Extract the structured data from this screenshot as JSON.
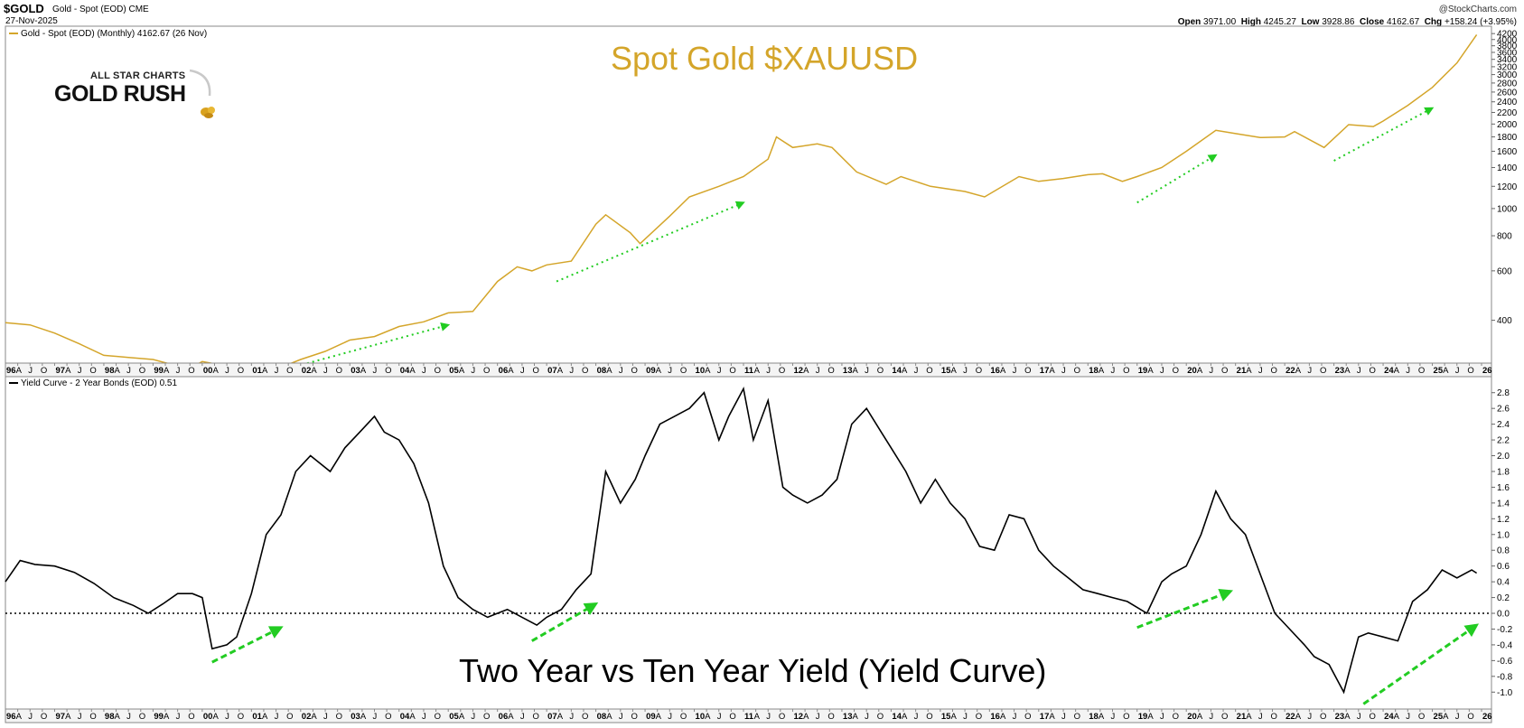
{
  "header": {
    "symbol": "$GOLD",
    "description": "Gold - Spot (EOD) CME",
    "date": "27-Nov-2025",
    "credit": "@StockCharts.com",
    "ohlc": {
      "open_label": "Open",
      "open": "3971.00",
      "high_label": "High",
      "high": "4245.27",
      "low_label": "Low",
      "low": "3928.86",
      "close_label": "Close",
      "close": "4162.67",
      "chg_label": "Chg",
      "chg": "+158.24 (+3.95%)"
    }
  },
  "logo": {
    "top_text": "ALL STAR CHARTS",
    "main_text": "GOLD RUSH"
  },
  "colors": {
    "gold": "#d4a52a",
    "yield": "#000000",
    "arrow": "#22cc22"
  },
  "x_axis": {
    "labels": [
      "96",
      "A",
      "J",
      "O",
      "97",
      "A",
      "J",
      "O",
      "98",
      "A",
      "J",
      "O",
      "99",
      "A",
      "J",
      "O",
      "00",
      "A",
      "J",
      "O",
      "01",
      "A",
      "J",
      "O",
      "02",
      "A",
      "J",
      "O",
      "03",
      "A",
      "J",
      "O",
      "04",
      "A",
      "J",
      "O",
      "05",
      "A",
      "J",
      "O",
      "06",
      "A",
      "J",
      "O",
      "07",
      "A",
      "J",
      "O",
      "08",
      "A",
      "J",
      "O",
      "09",
      "A",
      "J",
      "O",
      "10",
      "A",
      "J",
      "O",
      "11",
      "A",
      "J",
      "O",
      "12",
      "A",
      "J",
      "O",
      "13",
      "A",
      "J",
      "O",
      "14",
      "A",
      "J",
      "O",
      "15",
      "A",
      "J",
      "O",
      "16",
      "A",
      "J",
      "O",
      "17",
      "A",
      "J",
      "O",
      "18",
      "A",
      "J",
      "O",
      "19",
      "A",
      "J",
      "O",
      "20",
      "A",
      "J",
      "O",
      "21",
      "A",
      "J",
      "O",
      "22",
      "A",
      "J",
      "O",
      "23",
      "A",
      "J",
      "O",
      "24",
      "A",
      "J",
      "O",
      "25",
      "A",
      "J",
      "O",
      "26"
    ]
  },
  "chart_data": [
    {
      "type": "line",
      "title": "Spot Gold $XAUUSD",
      "legend": "Gold - Spot (EOD) (Monthly) 4162.67 (26 Nov)",
      "scale": "log",
      "ylim": [
        290,
        4300
      ],
      "yticks": [
        400,
        600,
        800,
        1000,
        1200,
        1400,
        1600,
        1800,
        2000,
        2200,
        2400,
        2600,
        2800,
        3000,
        3200,
        3400,
        3600,
        3800,
        4000,
        4200
      ],
      "x": [
        1996.0,
        1996.5,
        1997.0,
        1997.5,
        1998.0,
        1998.5,
        1999.0,
        1999.5,
        1999.75,
        2000.0,
        2000.5,
        2001.0,
        2001.3,
        2001.6,
        2002.0,
        2002.5,
        2003.0,
        2003.5,
        2004.0,
        2004.5,
        2005.0,
        2005.5,
        2006.0,
        2006.4,
        2006.7,
        2007.0,
        2007.5,
        2008.0,
        2008.2,
        2008.7,
        2008.9,
        2009.5,
        2009.9,
        2010.5,
        2011.0,
        2011.5,
        2011.67,
        2012.0,
        2012.5,
        2012.8,
        2013.3,
        2013.9,
        2014.2,
        2014.8,
        2015.5,
        2015.9,
        2016.6,
        2017.0,
        2017.5,
        2018.0,
        2018.3,
        2018.7,
        2019.0,
        2019.5,
        2020.0,
        2020.6,
        2021.0,
        2021.5,
        2022.0,
        2022.2,
        2022.8,
        2023.3,
        2023.8,
        2024.0,
        2024.5,
        2025.0,
        2025.5,
        2025.9
      ],
      "values": [
        392,
        385,
        360,
        330,
        300,
        295,
        290,
        275,
        270,
        285,
        275,
        270,
        265,
        272,
        290,
        310,
        340,
        350,
        380,
        395,
        425,
        430,
        550,
        620,
        600,
        630,
        650,
        880,
        950,
        820,
        750,
        940,
        1100,
        1200,
        1300,
        1500,
        1800,
        1650,
        1700,
        1650,
        1350,
        1220,
        1300,
        1200,
        1150,
        1100,
        1300,
        1250,
        1280,
        1320,
        1330,
        1250,
        1300,
        1400,
        1600,
        1900,
        1850,
        1790,
        1800,
        1880,
        1650,
        1990,
        1960,
        2050,
        2330,
        2700,
        3300,
        4162.67
      ],
      "annotations": [
        {
          "type": "arrow",
          "from": [
            2001.6,
            265
          ],
          "to": [
            2005.0,
            385
          ]
        },
        {
          "type": "arrow",
          "from": [
            2007.2,
            550
          ],
          "to": [
            2011.0,
            1050
          ]
        },
        {
          "type": "arrow",
          "from": [
            2019.0,
            1050
          ],
          "to": [
            2020.6,
            1550
          ]
        },
        {
          "type": "arrow",
          "from": [
            2023.0,
            1480
          ],
          "to": [
            2025.0,
            2280
          ]
        }
      ]
    },
    {
      "type": "line",
      "title": "Two Year vs Ten Year Yield (Yield Curve)",
      "legend": "Yield Curve - 2 Year Bonds (EOD) 0.51",
      "ylim": [
        -1.1,
        2.9
      ],
      "yticks": [
        -1.0,
        -0.8,
        -0.6,
        -0.4,
        -0.2,
        0.0,
        0.2,
        0.4,
        0.6,
        0.8,
        1.0,
        1.2,
        1.4,
        1.6,
        1.8,
        2.0,
        2.2,
        2.4,
        2.6,
        2.8
      ],
      "x": [
        1996.0,
        1996.3,
        1996.6,
        1997.0,
        1997.4,
        1997.8,
        1998.2,
        1998.6,
        1998.9,
        1999.2,
        1999.5,
        1999.8,
        2000.0,
        2000.2,
        2000.5,
        2000.7,
        2001.0,
        2001.3,
        2001.6,
        2001.9,
        2002.2,
        2002.6,
        2002.9,
        2003.2,
        2003.5,
        2003.7,
        2004.0,
        2004.3,
        2004.6,
        2004.9,
        2005.2,
        2005.5,
        2005.8,
        2006.0,
        2006.2,
        2006.5,
        2006.8,
        2007.0,
        2007.3,
        2007.6,
        2007.9,
        2008.2,
        2008.5,
        2008.8,
        2009.0,
        2009.3,
        2009.6,
        2009.9,
        2010.2,
        2010.5,
        2010.7,
        2011.0,
        2011.2,
        2011.5,
        2011.8,
        2012.0,
        2012.3,
        2012.6,
        2012.9,
        2013.2,
        2013.5,
        2013.8,
        2014.0,
        2014.3,
        2014.6,
        2014.9,
        2015.2,
        2015.5,
        2015.8,
        2016.1,
        2016.4,
        2016.7,
        2017.0,
        2017.3,
        2017.6,
        2017.9,
        2018.2,
        2018.5,
        2018.8,
        2019.2,
        2019.5,
        2019.7,
        2020.0,
        2020.3,
        2020.6,
        2020.9,
        2021.2,
        2021.5,
        2021.8,
        2022.1,
        2022.4,
        2022.6,
        2022.9,
        2023.2,
        2023.5,
        2023.7,
        2024.0,
        2024.3,
        2024.6,
        2024.9,
        2025.2,
        2025.5,
        2025.8,
        2025.9
      ],
      "values": [
        0.4,
        0.67,
        0.62,
        0.6,
        0.52,
        0.38,
        0.2,
        0.1,
        0.0,
        0.12,
        0.25,
        0.25,
        0.2,
        -0.45,
        -0.4,
        -0.3,
        0.25,
        1.0,
        1.25,
        1.8,
        2.0,
        1.8,
        2.1,
        2.3,
        2.5,
        2.3,
        2.2,
        1.9,
        1.4,
        0.6,
        0.2,
        0.05,
        -0.05,
        0.0,
        0.05,
        -0.05,
        -0.15,
        -0.05,
        0.05,
        0.3,
        0.5,
        1.8,
        1.4,
        1.7,
        2.0,
        2.4,
        2.5,
        2.6,
        2.8,
        2.2,
        2.5,
        2.85,
        2.2,
        2.7,
        1.6,
        1.5,
        1.4,
        1.5,
        1.7,
        2.4,
        2.6,
        2.3,
        2.1,
        1.8,
        1.4,
        1.7,
        1.4,
        1.2,
        0.85,
        0.8,
        1.25,
        1.2,
        0.8,
        0.6,
        0.45,
        0.3,
        0.25,
        0.2,
        0.15,
        0.0,
        0.4,
        0.5,
        0.6,
        1.0,
        1.55,
        1.2,
        1.0,
        0.5,
        0.0,
        -0.2,
        -0.4,
        -0.55,
        -0.65,
        -1.0,
        -0.3,
        -0.25,
        -0.3,
        -0.35,
        0.15,
        0.3,
        0.55,
        0.45,
        0.55,
        0.51
      ],
      "annotations": [
        {
          "type": "arrow",
          "from": [
            2000.2,
            -0.62
          ],
          "to": [
            2001.6,
            -0.18
          ]
        },
        {
          "type": "arrow",
          "from": [
            2006.7,
            -0.35
          ],
          "to": [
            2008.0,
            0.12
          ]
        },
        {
          "type": "arrow",
          "from": [
            2019.0,
            -0.18
          ],
          "to": [
            2020.9,
            0.28
          ]
        },
        {
          "type": "arrow",
          "from": [
            2023.6,
            -1.15
          ],
          "to": [
            2025.9,
            -0.15
          ]
        }
      ],
      "reference_line": 0.0
    }
  ]
}
